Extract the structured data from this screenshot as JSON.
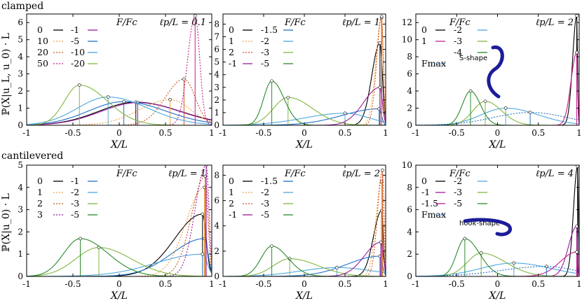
{
  "row_labels": [
    "clamped",
    "cantilevered"
  ],
  "ylabels": [
    "ℙ(X|u_L, u_0) · L",
    "ℙ(X|u_0) · L"
  ],
  "xlabel": "X/L",
  "chart_data": [
    {
      "type": "line",
      "row": "clamped",
      "annotation": "ℓp/L = 0.1",
      "legend_title": "F/Fc",
      "xlim": [
        -1,
        1
      ],
      "ylim": [
        0,
        6.5
      ],
      "xticks": [
        "-1",
        "-0.5",
        "0",
        "0.5",
        "1"
      ],
      "yticks": [
        "0",
        "1",
        "2",
        "3",
        "4",
        "5",
        "6"
      ],
      "legend": [
        [
          "0",
          "-1"
        ],
        [
          "10",
          "-5"
        ],
        [
          "20",
          "-10"
        ],
        [
          "50",
          "-20"
        ]
      ],
      "series": [
        {
          "name": "0",
          "color": "#000000",
          "dash": "solid",
          "peak_x": 0.18,
          "peak_y": 1.35,
          "sl": 0.4,
          "sr": 0.48
        },
        {
          "name": "-1",
          "color": "#9c1a9c",
          "dash": "solid",
          "peak_x": 0.2,
          "peak_y": 1.32,
          "sl": 0.4,
          "sr": 0.46
        },
        {
          "name": "10",
          "color": "#f1a23c",
          "dash": "dot",
          "peak_x": 0.55,
          "peak_y": 1.5,
          "sl": 0.33,
          "sr": 0.22
        },
        {
          "name": "-5",
          "color": "#1f6fc5",
          "dash": "solid",
          "peak_x": 0.05,
          "peak_y": 1.38,
          "sl": 0.38,
          "sr": 0.45
        },
        {
          "name": "20",
          "color": "#d0521f",
          "dash": "dot",
          "peak_x": 0.7,
          "peak_y": 2.7,
          "sl": 0.2,
          "sr": 0.12
        },
        {
          "name": "-10",
          "color": "#4ea8e0",
          "dash": "solid",
          "peak_x": -0.12,
          "peak_y": 1.65,
          "sl": 0.33,
          "sr": 0.43
        },
        {
          "name": "50",
          "color": "#c21f8c",
          "dash": "dot",
          "peak_x": 0.82,
          "peak_y": 6.4,
          "sl": 0.08,
          "sr": 0.05
        },
        {
          "name": "-20",
          "color": "#82b740",
          "dash": "solid",
          "peak_x": -0.43,
          "peak_y": 2.35,
          "sl": 0.16,
          "sr": 0.3
        }
      ]
    },
    {
      "type": "line",
      "row": "clamped",
      "annotation": "ℓp/L = 1",
      "legend_title": "F/Fc",
      "xlim": [
        -1,
        1
      ],
      "ylim": [
        0,
        8.8
      ],
      "xticks": [
        "-1",
        "-0.5",
        "0",
        "0.5",
        "1"
      ],
      "yticks": [
        "0",
        "1",
        "2",
        "3",
        "4",
        "5",
        "6",
        "7",
        "8"
      ],
      "legend": [
        [
          "0",
          "-1.5"
        ],
        [
          "1",
          "-2"
        ],
        [
          "2",
          "-3"
        ],
        [
          "-1",
          "-5"
        ]
      ],
      "series": [
        {
          "name": "0",
          "color": "#000000",
          "dash": "solid",
          "peak_x": 0.93,
          "peak_y": 6.5,
          "sl": 0.1,
          "sr": 0.03
        },
        {
          "name": "-1.5",
          "color": "#1f6fc5",
          "dash": "solid",
          "peak_x": 0.92,
          "peak_y": 1.3,
          "sl": 0.45,
          "sr": 0.03
        },
        {
          "name": "1",
          "color": "#f1a23c",
          "dash": "dot",
          "peak_x": 0.95,
          "peak_y": 8.5,
          "sl": 0.07,
          "sr": 0.02
        },
        {
          "name": "-2",
          "color": "#4ea8e0",
          "dash": "solid",
          "peak_x": 0.5,
          "peak_y": 0.95,
          "sl": 0.5,
          "sr": 0.3
        },
        {
          "name": "2",
          "color": "#d0521f",
          "dash": "dot",
          "peak_x": 0.95,
          "peak_y": 8.6,
          "sl": 0.06,
          "sr": 0.02
        },
        {
          "name": "-3",
          "color": "#82b740",
          "dash": "solid",
          "peak_x": -0.2,
          "peak_y": 2.2,
          "sl": 0.18,
          "sr": 0.3
        },
        {
          "name": "-1",
          "color": "#9c1a9c",
          "dash": "solid",
          "peak_x": 0.93,
          "peak_y": 3.0,
          "sl": 0.2,
          "sr": 0.03
        },
        {
          "name": "-5",
          "color": "#2a8a2a",
          "dash": "solid",
          "peak_x": -0.4,
          "peak_y": 3.5,
          "sl": 0.1,
          "sr": 0.15
        }
      ]
    },
    {
      "type": "line",
      "row": "clamped",
      "annotation": "ℓp/L = 2",
      "legend_title": "F/Fc",
      "legend_extra": "Fmax",
      "shape_label": "S-shape",
      "xlim": [
        -1,
        1
      ],
      "ylim": [
        0,
        13
      ],
      "xticks": [
        "-1",
        "-0.5",
        "0",
        "0.5",
        "1"
      ],
      "yticks": [
        "0",
        "2",
        "4",
        "6",
        "8",
        "10",
        "12"
      ],
      "legend": [
        [
          "0",
          "-2"
        ],
        [
          "1",
          "-3"
        ],
        [
          "",
          "-4"
        ]
      ],
      "series": [
        {
          "name": "0",
          "color": "#000000",
          "dash": "solid",
          "peak_x": 0.97,
          "peak_y": 12.8,
          "sl": 0.05,
          "sr": 0.01
        },
        {
          "name": "-2",
          "color": "#4ea8e0",
          "dash": "solid",
          "peak_x": 0.1,
          "peak_y": 2.0,
          "sl": 0.3,
          "sr": 0.4
        },
        {
          "name": "1",
          "color": "#c21f8c",
          "dash": "solid",
          "peak_x": 0.97,
          "peak_y": 8.5,
          "sl": 0.07,
          "sr": 0.01
        },
        {
          "name": "-3",
          "color": "#82b740",
          "dash": "solid",
          "peak_x": -0.15,
          "peak_y": 2.8,
          "sl": 0.15,
          "sr": 0.2
        },
        {
          "name": "-4",
          "color": "#2a8a2a",
          "dash": "solid",
          "peak_x": -0.33,
          "peak_y": 4.0,
          "sl": 0.1,
          "sr": 0.12
        },
        {
          "name": "Fmax",
          "color": "#1f6fc5",
          "dash": "dot",
          "peak_x": 0.4,
          "peak_y": 1.5,
          "sl": 0.45,
          "sr": 0.45
        }
      ]
    },
    {
      "type": "line",
      "row": "cantilevered",
      "annotation": "ℓp/L = 1",
      "legend_title": "F/Fc",
      "xlim": [
        -1,
        1
      ],
      "ylim": [
        0,
        5
      ],
      "xticks": [
        "-1",
        "-0.5",
        "0",
        "0.5",
        "1"
      ],
      "yticks": [
        "0",
        "1",
        "2",
        "3",
        "4",
        "5"
      ],
      "legend": [
        [
          "0",
          "-1"
        ],
        [
          "1",
          "-2"
        ],
        [
          "2",
          "-3"
        ],
        [
          "3",
          "-5"
        ]
      ],
      "series": [
        {
          "name": "0",
          "color": "#000000",
          "dash": "solid",
          "peak_x": 0.9,
          "peak_y": 2.8,
          "sl": 0.3,
          "sr": 0.04
        },
        {
          "name": "-1",
          "color": "#1f6fc5",
          "dash": "solid",
          "peak_x": 0.92,
          "peak_y": 1.7,
          "sl": 0.35,
          "sr": 0.04
        },
        {
          "name": "1",
          "color": "#f1a23c",
          "dash": "dot",
          "peak_x": 0.92,
          "peak_y": 4.0,
          "sl": 0.2,
          "sr": 0.04
        },
        {
          "name": "-2",
          "color": "#4ea8e0",
          "dash": "solid",
          "peak_x": 0.9,
          "peak_y": 1.0,
          "sl": 0.5,
          "sr": 0.05
        },
        {
          "name": "2",
          "color": "#d0521f",
          "dash": "dot",
          "peak_x": 0.93,
          "peak_y": 4.5,
          "sl": 0.15,
          "sr": 0.03
        },
        {
          "name": "-3",
          "color": "#82b740",
          "dash": "solid",
          "peak_x": -0.22,
          "peak_y": 1.3,
          "sl": 0.25,
          "sr": 0.35
        },
        {
          "name": "3",
          "color": "#9c1a9c",
          "dash": "dot",
          "peak_x": 0.94,
          "peak_y": 5.0,
          "sl": 0.12,
          "sr": 0.03
        },
        {
          "name": "-5",
          "color": "#2a8a2a",
          "dash": "solid",
          "peak_x": -0.42,
          "peak_y": 1.7,
          "sl": 0.18,
          "sr": 0.3
        }
      ]
    },
    {
      "type": "line",
      "row": "cantilevered",
      "annotation": "ℓp/L = 2",
      "legend_title": "F/Fc",
      "xlim": [
        -1,
        1
      ],
      "ylim": [
        0,
        8.8
      ],
      "xticks": [
        "-1",
        "-0.5",
        "0",
        "0.5",
        "1"
      ],
      "yticks": [
        "0",
        "2",
        "4",
        "6",
        "8"
      ],
      "legend": [
        [
          "0",
          "-1.5"
        ],
        [
          "1",
          "-2"
        ],
        [
          "2",
          "-3"
        ],
        [
          "-1",
          "-5"
        ]
      ],
      "series": [
        {
          "name": "0",
          "color": "#000000",
          "dash": "solid",
          "peak_x": 0.95,
          "peak_y": 5.2,
          "sl": 0.1,
          "sr": 0.02
        },
        {
          "name": "-1.5",
          "color": "#1f6fc5",
          "dash": "solid",
          "peak_x": 0.93,
          "peak_y": 1.6,
          "sl": 0.4,
          "sr": 0.03
        },
        {
          "name": "1",
          "color": "#f1a23c",
          "dash": "dot",
          "peak_x": 0.95,
          "peak_y": 7.5,
          "sl": 0.07,
          "sr": 0.02
        },
        {
          "name": "-2",
          "color": "#4ea8e0",
          "dash": "solid",
          "peak_x": 0.4,
          "peak_y": 0.7,
          "sl": 0.45,
          "sr": 0.45
        },
        {
          "name": "2",
          "color": "#d0521f",
          "dash": "dot",
          "peak_x": 0.96,
          "peak_y": 8.4,
          "sl": 0.06,
          "sr": 0.02
        },
        {
          "name": "-3",
          "color": "#82b740",
          "dash": "solid",
          "peak_x": -0.18,
          "peak_y": 1.4,
          "sl": 0.2,
          "sr": 0.35
        },
        {
          "name": "-1",
          "color": "#9c1a9c",
          "dash": "solid",
          "peak_x": 0.94,
          "peak_y": 2.7,
          "sl": 0.2,
          "sr": 0.03
        },
        {
          "name": "-5",
          "color": "#2a8a2a",
          "dash": "solid",
          "peak_x": -0.4,
          "peak_y": 2.4,
          "sl": 0.13,
          "sr": 0.2
        }
      ]
    },
    {
      "type": "line",
      "row": "cantilevered",
      "annotation": "ℓp/L = 4",
      "legend_title": "F/Fc",
      "legend_extra": "Fmax",
      "shape_label": "hook-shape",
      "xlim": [
        -1,
        1
      ],
      "ylim": [
        0,
        10
      ],
      "xticks": [
        "-1",
        "-0.5",
        "0",
        "0.5",
        "1"
      ],
      "yticks": [
        "0",
        "2",
        "4",
        "6",
        "8",
        "10"
      ],
      "legend": [
        [
          "0",
          "-2"
        ],
        [
          "-1",
          "-3"
        ],
        [
          "-1.5",
          "-5"
        ]
      ],
      "series": [
        {
          "name": "0",
          "color": "#000000",
          "dash": "solid",
          "peak_x": 0.98,
          "peak_y": 9.9,
          "sl": 0.05,
          "sr": 0.01
        },
        {
          "name": "-2",
          "color": "#4ea8e0",
          "dash": "solid",
          "peak_x": 0.2,
          "peak_y": 1.2,
          "sl": 0.4,
          "sr": 0.45
        },
        {
          "name": "-1",
          "color": "#9c1a9c",
          "dash": "solid",
          "peak_x": 0.97,
          "peak_y": 4.5,
          "sl": 0.1,
          "sr": 0.01
        },
        {
          "name": "-3",
          "color": "#82b740",
          "dash": "solid",
          "peak_x": -0.2,
          "peak_y": 2.1,
          "sl": 0.17,
          "sr": 0.3
        },
        {
          "name": "-1.5",
          "color": "#c21f8c",
          "dash": "solid",
          "peak_x": 0.97,
          "peak_y": 2.2,
          "sl": 0.2,
          "sr": 0.01
        },
        {
          "name": "-5",
          "color": "#2a8a2a",
          "dash": "solid",
          "peak_x": -0.4,
          "peak_y": 3.4,
          "sl": 0.1,
          "sr": 0.18
        },
        {
          "name": "Fmax",
          "color": "#1f6fc5",
          "dash": "dot",
          "peak_x": 0.6,
          "peak_y": 0.9,
          "sl": 0.55,
          "sr": 0.35
        }
      ]
    }
  ]
}
